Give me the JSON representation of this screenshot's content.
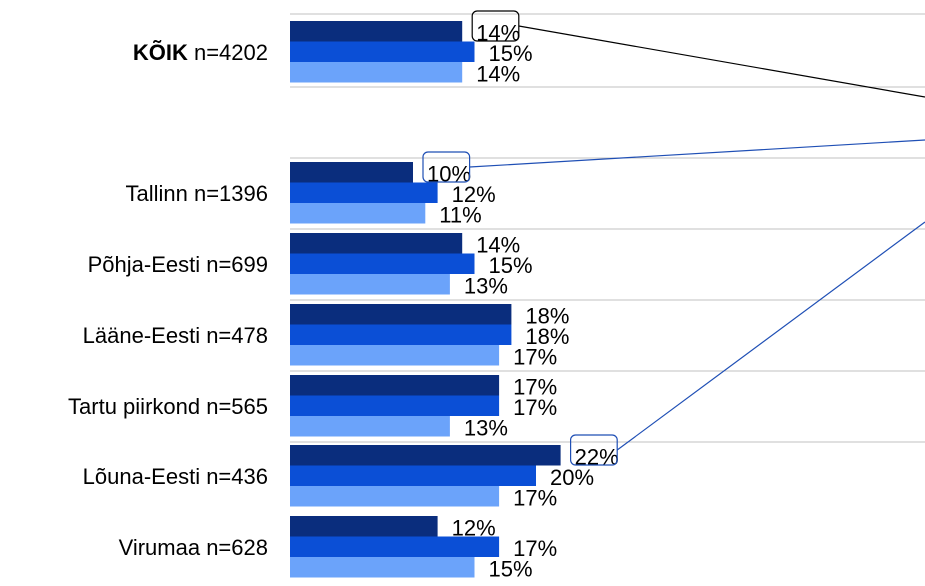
{
  "chart_data": {
    "type": "bar",
    "orientation": "horizontal",
    "grid": true,
    "value_unit": "%",
    "categories": [
      {
        "bold": "KÕIK",
        "label": " n=4202"
      },
      {
        "bold": "",
        "label": "Tallinn n=1396"
      },
      {
        "bold": "",
        "label": "Põhja-Eesti  n=699"
      },
      {
        "bold": "",
        "label": "Lääne-Eesti  n=478"
      },
      {
        "bold": "",
        "label": "Tartu piirkond  n=565"
      },
      {
        "bold": "",
        "label": "Lõuna-Eesti  n=436"
      },
      {
        "bold": "",
        "label": "Virumaa  n=628"
      }
    ],
    "series": [
      {
        "values": [
          14,
          10,
          14,
          18,
          17,
          22,
          12
        ]
      },
      {
        "values": [
          15,
          12,
          15,
          18,
          17,
          20,
          17
        ]
      },
      {
        "values": [
          14,
          11,
          13,
          17,
          13,
          17,
          15
        ]
      }
    ],
    "callouts": [
      {
        "category_index": 0,
        "series_index": 0
      },
      {
        "category_index": 1,
        "series_index": 0
      },
      {
        "category_index": 5,
        "series_index": 0
      }
    ],
    "colors": {
      "series": [
        "#0a2d7d",
        "#0b4fd6",
        "#6ba3fa"
      ],
      "grid": "#c0c0c0",
      "callout_total": "#000000",
      "callout_region": "#1f4fb5",
      "label_text": "#000000"
    }
  }
}
